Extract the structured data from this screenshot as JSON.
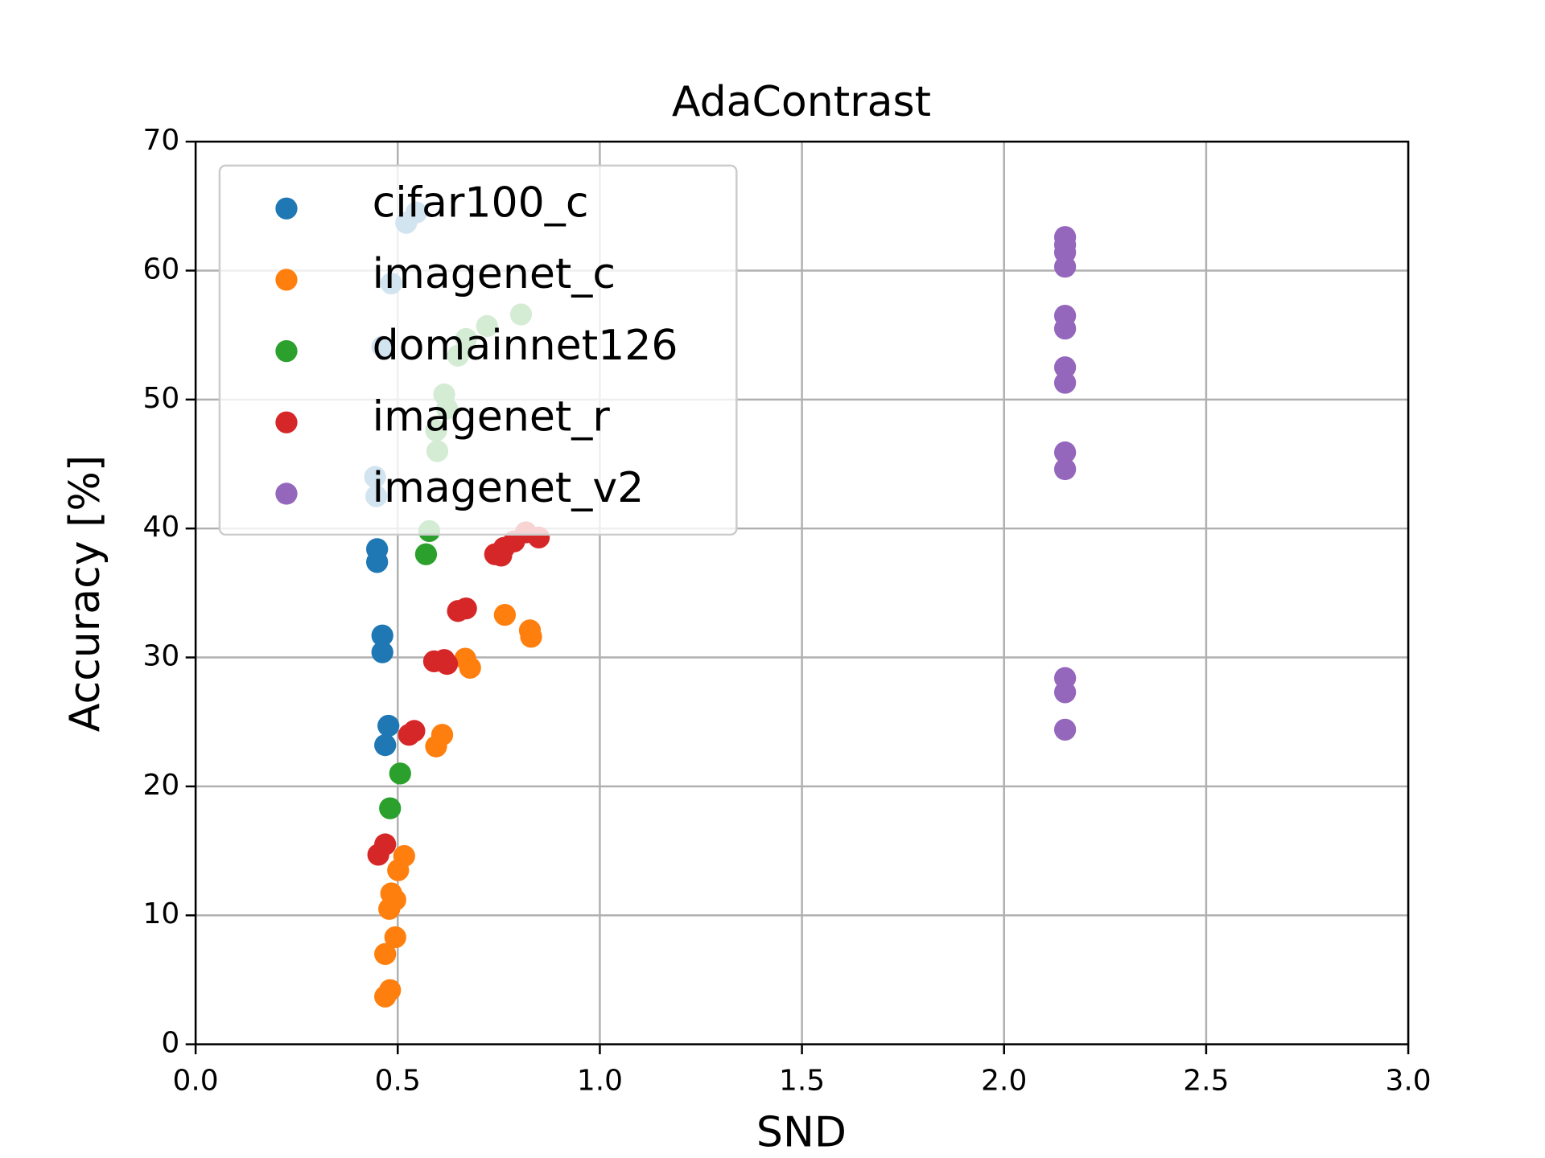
{
  "chart_data": {
    "type": "scatter",
    "title": "AdaContrast",
    "x_label": "SND",
    "y_label": "Accuracy [%]",
    "xlim": [
      0,
      3
    ],
    "ylim": [
      0,
      70
    ],
    "xticks": [
      {
        "value": 0,
        "label": "0.0"
      },
      {
        "value": 0.5,
        "label": "0.5"
      },
      {
        "value": 1,
        "label": "1.0"
      },
      {
        "value": 1.5,
        "label": "1.5"
      },
      {
        "value": 2,
        "label": "2.0"
      },
      {
        "value": 2.5,
        "label": "2.5"
      },
      {
        "value": 3,
        "label": "3.0"
      }
    ],
    "yticks": [
      0,
      10,
      20,
      30,
      40,
      50,
      60,
      70
    ],
    "grid": true,
    "legend": "upper left",
    "series": [
      {
        "name": "cifar100_c",
        "color": "#1f77b4",
        "x": [
          0.449,
          0.449,
          0.462,
          0.462,
          0.477,
          0.469,
          0.521,
          0.546,
          0.484,
          0.462,
          0.444,
          0.447
        ],
        "values": [
          38.4,
          37.4,
          31.7,
          30.4,
          24.7,
          23.2,
          63.7,
          64.5,
          59.0,
          54.1,
          44.0,
          42.5
        ]
      },
      {
        "name": "imagenet_c",
        "color": "#ff7f0e",
        "x": [
          0.469,
          0.481,
          0.469,
          0.494,
          0.479,
          0.494,
          0.484,
          0.501,
          0.516,
          0.595,
          0.61,
          0.667,
          0.679,
          0.765,
          0.827,
          0.83
        ],
        "values": [
          3.7,
          4.2,
          7.0,
          8.3,
          10.5,
          11.2,
          11.7,
          13.5,
          14.6,
          23.1,
          24.0,
          29.9,
          29.2,
          33.3,
          32.1,
          31.6
        ]
      },
      {
        "name": "domainnet126",
        "color": "#2ca02c",
        "x": [
          0.481,
          0.506,
          0.57,
          0.578,
          0.598,
          0.595,
          0.615,
          0.622,
          0.649,
          0.669,
          0.721,
          0.805
        ],
        "values": [
          18.3,
          21.0,
          38.0,
          39.8,
          46.0,
          47.6,
          50.4,
          49.3,
          53.4,
          54.7,
          55.7,
          56.6
        ]
      },
      {
        "name": "imagenet_r",
        "color": "#d62728",
        "x": [
          0.452,
          0.469,
          0.528,
          0.541,
          0.59,
          0.615,
          0.622,
          0.649,
          0.669,
          0.741,
          0.756,
          0.763,
          0.788,
          0.817,
          0.849
        ],
        "values": [
          14.7,
          15.5,
          24.0,
          24.3,
          29.7,
          29.8,
          29.5,
          33.6,
          33.8,
          38.0,
          37.9,
          38.5,
          39.0,
          39.7,
          39.3
        ]
      },
      {
        "name": "imagenet_v2",
        "color": "#9467bd",
        "x": [
          2.151,
          2.151,
          2.151,
          2.151,
          2.151,
          2.151,
          2.151,
          2.151,
          2.151,
          2.151,
          2.151,
          2.151,
          2.151
        ],
        "values": [
          62.6,
          62.0,
          61.4,
          60.3,
          56.5,
          55.5,
          52.5,
          51.3,
          45.9,
          44.6,
          28.4,
          27.3,
          24.4
        ]
      }
    ]
  }
}
